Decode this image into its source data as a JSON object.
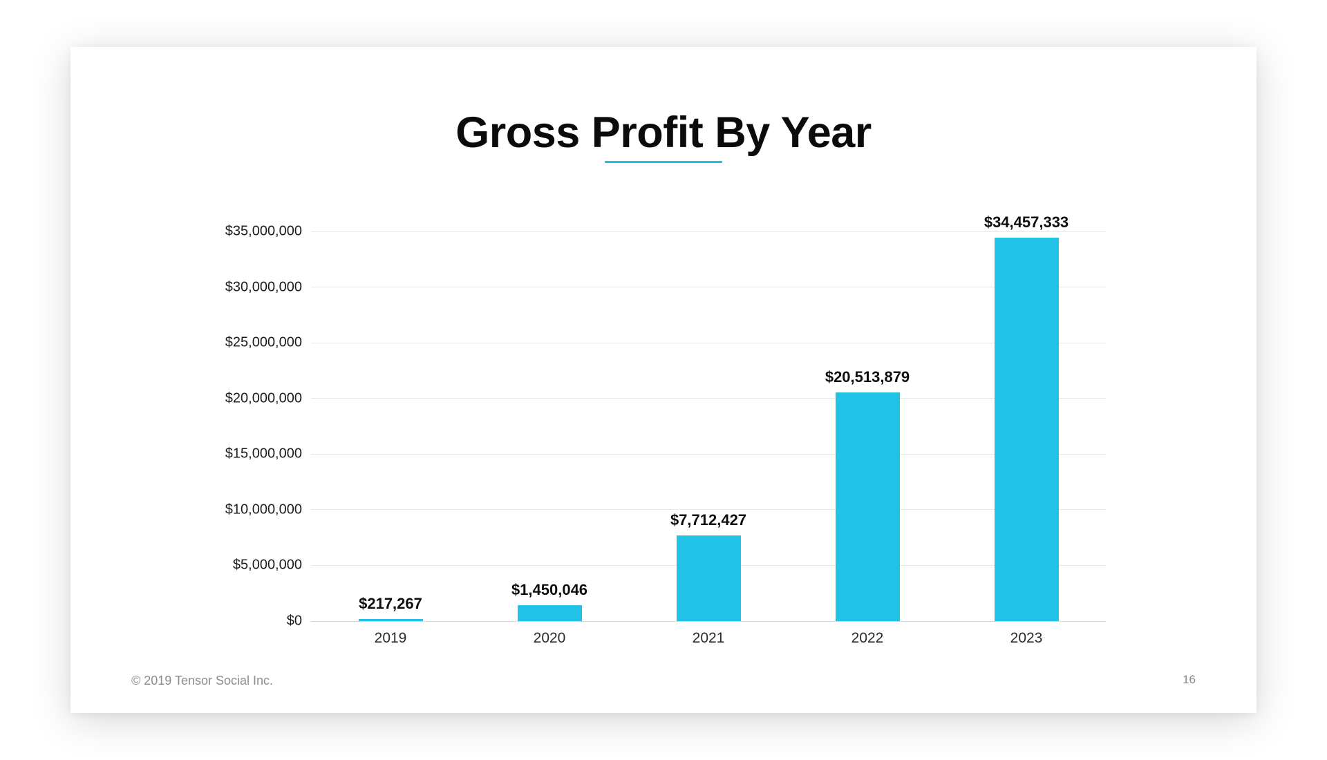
{
  "slide": {
    "title": "Gross Profit By Year",
    "footer_copyright": "© 2019 Tensor Social Inc.",
    "page_number": "16"
  },
  "colors": {
    "accent_cyan": "#21C2E6",
    "title_text": "#0b0b0b",
    "gridline": "#e7e7e7",
    "footer_gray": "#8c8c8c"
  },
  "chart_data": {
    "type": "bar",
    "title": "Gross Profit By Year",
    "categories": [
      "2019",
      "2020",
      "2021",
      "2022",
      "2023"
    ],
    "values": [
      217267,
      1450046,
      7712427,
      20513879,
      34457333
    ],
    "value_labels": [
      "$217,267",
      "$1,450,046",
      "$7,712,427",
      "$20,513,879",
      "$34,457,333"
    ],
    "y_ticks": [
      0,
      5000000,
      10000000,
      15000000,
      20000000,
      25000000,
      30000000,
      35000000
    ],
    "y_tick_labels": [
      "$0",
      "$5,000,000",
      "$10,000,000",
      "$15,000,000",
      "$20,000,000",
      "$25,000,000",
      "$30,000,000",
      "$35,000,000"
    ],
    "ylim": [
      0,
      35000000
    ],
    "xlabel": "",
    "ylabel": "",
    "grid": true,
    "legend": false,
    "bar_color": "#21C2E6"
  }
}
